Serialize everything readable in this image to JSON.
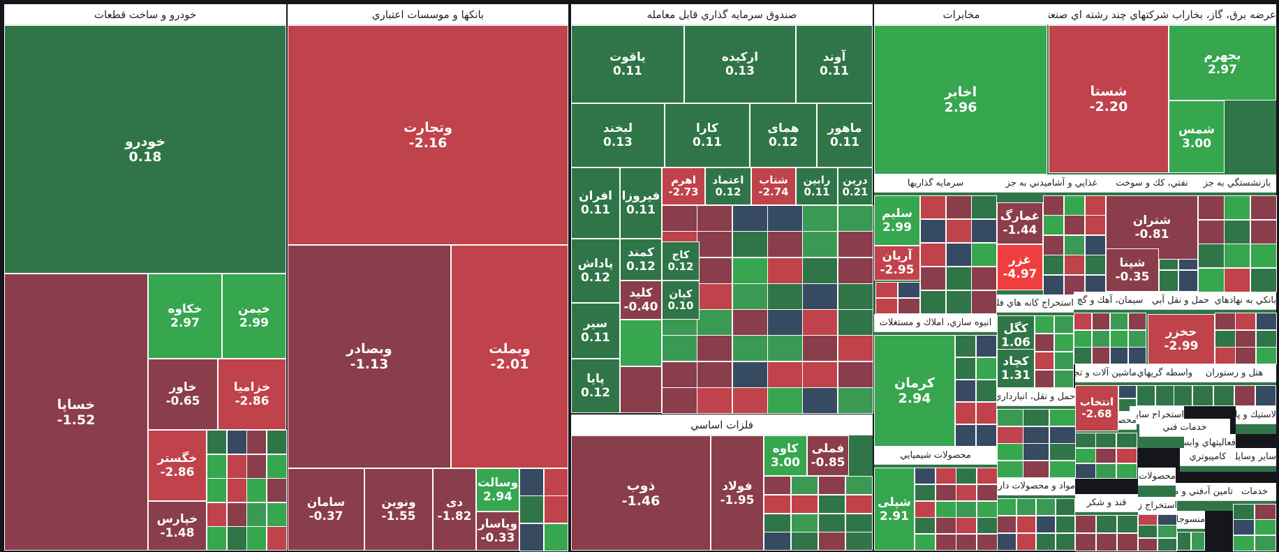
{
  "colors": {
    "green_dark": "#2f7547",
    "green_mid": "#3a9a54",
    "green_light": "#36a64f",
    "maroon": "#8a3d4b",
    "red": "#c0424a",
    "red_bright": "#ef3e3e",
    "navy": "#364a62",
    "header_bg": "#ffffff",
    "border": "#ffffff"
  },
  "sectors": [
    {
      "id": "auto",
      "title": "خودرو و ساخت قطعات"
    },
    {
      "id": "banks",
      "title": "بانكها و موسسات اعتباري"
    },
    {
      "id": "funds",
      "title": "صندوق سرمايه گذاري قابل معامله"
    },
    {
      "id": "telecom",
      "title": "مخابرات"
    },
    {
      "id": "multi",
      "title": "شركتهاي چند رشته اي صنعتي"
    },
    {
      "id": "power",
      "title": "عرضه برق، گاز، بخاراب گرم"
    },
    {
      "id": "metals",
      "title": "فلزات اساسي"
    },
    {
      "id": "invest",
      "title": "سرمايه گذاريها"
    },
    {
      "id": "food",
      "title": "غذايي و آشاميدني به جز"
    },
    {
      "id": "oil",
      "title": "نفتي، كك و سوخت"
    },
    {
      "id": "retail",
      "title": "بازنشستگي به جز"
    },
    {
      "id": "realestate",
      "title": "انبوه سازي، املاك و مستغلات"
    },
    {
      "id": "mining",
      "title": "استخراج كانه هاي فلزي"
    },
    {
      "id": "cement",
      "title": "سيمان، آهك و گچ"
    },
    {
      "id": "transport",
      "title": "حمل و نقل آبي"
    },
    {
      "id": "agents",
      "title": "بانكي به نهادهاي"
    },
    {
      "id": "chem",
      "title": "محصولات شيميايي"
    },
    {
      "id": "transport2",
      "title": "حمل و نقل، انبارداري و ارتباطات"
    },
    {
      "id": "machinery",
      "title": "ماشين آلات و تجهيزات"
    },
    {
      "id": "intermed",
      "title": "واسطه گريهاي مالي"
    },
    {
      "id": "hotel",
      "title": "هتل و رستوران"
    },
    {
      "id": "mining2",
      "title": "استخراج ساير معادن"
    },
    {
      "id": "rubber",
      "title": "لاستيك و پلاستيك"
    },
    {
      "id": "nonmetal",
      "title": "محصولات كاني غيرفلزي"
    },
    {
      "id": "services",
      "title": "خدمات فني"
    },
    {
      "id": "activities",
      "title": "فعاليتهاي وابسته"
    },
    {
      "id": "pharma",
      "title": "مواد و محصولات دارويي"
    },
    {
      "id": "computer",
      "title": "كامپيوتري"
    },
    {
      "id": "cars2",
      "title": "ساير وسايل حمل و نقل"
    },
    {
      "id": "sugar",
      "title": "قند و شكر"
    },
    {
      "id": "paper",
      "title": "محصولات كاغذي"
    },
    {
      "id": "tech",
      "title": "فني و مهندسي"
    },
    {
      "id": "coal",
      "title": "استخراج زغال سنگ"
    },
    {
      "id": "supply",
      "title": "تامين آب"
    },
    {
      "id": "textile",
      "title": "منسوجات"
    },
    {
      "id": "wood",
      "title": "خدمات"
    }
  ],
  "tiles": [
    {
      "name": "خودرو",
      "value": "0.18",
      "color": "green_dark"
    },
    {
      "name": "خساپا",
      "value": "-1.52",
      "color": "maroon"
    },
    {
      "name": "خكاوه",
      "value": "2.97",
      "color": "green_light"
    },
    {
      "name": "خيمن",
      "value": "2.99",
      "color": "green_light"
    },
    {
      "name": "خاور",
      "value": "-0.65",
      "color": "maroon"
    },
    {
      "name": "خزاميا",
      "value": "-2.86",
      "color": "red"
    },
    {
      "name": "خگستر",
      "value": "-2.86",
      "color": "red"
    },
    {
      "name": "خپارس",
      "value": "-1.48",
      "color": "maroon"
    },
    {
      "name": "وتجارت",
      "value": "-2.16",
      "color": "red"
    },
    {
      "name": "وبصادر",
      "value": "-1.13",
      "color": "maroon"
    },
    {
      "name": "وبملت",
      "value": "-2.01",
      "color": "red"
    },
    {
      "name": "سامان",
      "value": "-0.37",
      "color": "maroon"
    },
    {
      "name": "ونوين",
      "value": "-1.55",
      "color": "maroon"
    },
    {
      "name": "دی",
      "value": "-1.82",
      "color": "maroon"
    },
    {
      "name": "وسالت",
      "value": "2.94",
      "color": "green_light"
    },
    {
      "name": "وپاسار",
      "value": "-0.33",
      "color": "maroon"
    },
    {
      "name": "ياقوت",
      "value": "0.11",
      "color": "green_dark"
    },
    {
      "name": "اركيده",
      "value": "0.13",
      "color": "green_dark"
    },
    {
      "name": "آوند",
      "value": "0.11",
      "color": "green_dark"
    },
    {
      "name": "لبخند",
      "value": "0.13",
      "color": "green_dark"
    },
    {
      "name": "كارا",
      "value": "0.11",
      "color": "green_dark"
    },
    {
      "name": "همای",
      "value": "0.12",
      "color": "green_dark"
    },
    {
      "name": "ماهور",
      "value": "0.11",
      "color": "green_dark"
    },
    {
      "name": "افران",
      "value": "0.11",
      "color": "green_dark"
    },
    {
      "name": "فيروزا",
      "value": "0.11",
      "color": "green_dark"
    },
    {
      "name": "اهرم",
      "value": "-2.73",
      "color": "red"
    },
    {
      "name": "اعتماد",
      "value": "0.12",
      "color": "green_dark"
    },
    {
      "name": "شتاب",
      "value": "-2.74",
      "color": "red"
    },
    {
      "name": "رابين",
      "value": "0.11",
      "color": "green_dark"
    },
    {
      "name": "درين",
      "value": "0.21",
      "color": "green_dark"
    },
    {
      "name": "پاداش",
      "value": "0.12",
      "color": "green_dark"
    },
    {
      "name": "كمند",
      "value": "0.12",
      "color": "green_dark"
    },
    {
      "name": "كاج",
      "value": "0.12",
      "color": "green_dark"
    },
    {
      "name": "كليد",
      "value": "-0.40",
      "color": "maroon"
    },
    {
      "name": "كيان",
      "value": "0.10",
      "color": "green_dark"
    },
    {
      "name": "سير",
      "value": "0.11",
      "color": "green_dark"
    },
    {
      "name": "پايا",
      "value": "0.12",
      "color": "green_dark"
    },
    {
      "name": "اخابر",
      "value": "2.96",
      "color": "green_light"
    },
    {
      "name": "شستا",
      "value": "-2.20",
      "color": "red"
    },
    {
      "name": "بجهرم",
      "value": "2.97",
      "color": "green_light"
    },
    {
      "name": "شمس",
      "value": "3.00",
      "color": "green_light"
    },
    {
      "name": "ذوب",
      "value": "-1.46",
      "color": "maroon"
    },
    {
      "name": "فولاد",
      "value": "-1.95",
      "color": "maroon"
    },
    {
      "name": "كاوه",
      "value": "3.00",
      "color": "green_light"
    },
    {
      "name": "فملی",
      "value": "-0.85",
      "color": "maroon"
    },
    {
      "name": "سليم",
      "value": "2.99",
      "color": "green_light"
    },
    {
      "name": "آريان",
      "value": "-2.95",
      "color": "red"
    },
    {
      "name": "غمارگ",
      "value": "-1.44",
      "color": "maroon"
    },
    {
      "name": "غزر",
      "value": "-4.97",
      "color": "red_bright"
    },
    {
      "name": "شتران",
      "value": "-0.81",
      "color": "maroon"
    },
    {
      "name": "شپنا",
      "value": "-0.35",
      "color": "maroon"
    },
    {
      "name": "كرمان",
      "value": "2.94",
      "color": "green_light"
    },
    {
      "name": "كگل",
      "value": "1.06",
      "color": "green_dark"
    },
    {
      "name": "كچاد",
      "value": "1.31",
      "color": "green_dark"
    },
    {
      "name": "حخزر",
      "value": "-2.99",
      "color": "red"
    },
    {
      "name": "انتخاب",
      "value": "-2.68",
      "color": "red"
    },
    {
      "name": "شپلی",
      "value": "2.91",
      "color": "green_light"
    }
  ]
}
